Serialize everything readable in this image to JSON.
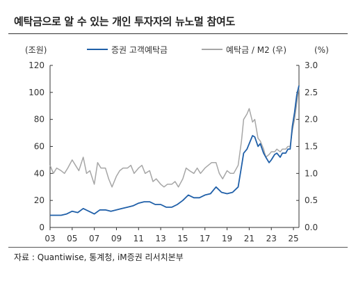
{
  "header": {
    "title": "예탁금으로 알 수 있는 개인 투자자의 뉴노멀 참여도"
  },
  "footer": {
    "source": "자료 : Quantiwise, 통계청, iM증권 리서치본부"
  },
  "colors": {
    "deposits": "#1f5fa8",
    "ratio": "#a6a6a6",
    "axis": "#333333",
    "text": "#333333"
  },
  "chart_data": {
    "type": "line",
    "left_axis": {
      "unit": "(조원)",
      "range": [
        0,
        120
      ],
      "ticks": [
        "0",
        "20",
        "40",
        "60",
        "80",
        "100",
        "120"
      ]
    },
    "right_axis": {
      "unit": "(%)",
      "range": [
        0,
        3
      ],
      "ticks": [
        "0.0",
        "0.5",
        "1.0",
        "1.5",
        "2.0",
        "2.5",
        "3.0"
      ]
    },
    "x_axis": {
      "range": [
        2003,
        2025.5
      ],
      "ticks": [
        "03",
        "05",
        "07",
        "09",
        "11",
        "13",
        "15",
        "17",
        "19",
        "21",
        "23",
        "25"
      ]
    },
    "grid": false,
    "legend": "top",
    "series": [
      {
        "name": "증권 고객예탁금",
        "axis": "left",
        "x": [
          2003.0,
          2003.5,
          2004.0,
          2004.5,
          2005.0,
          2005.5,
          2006.0,
          2006.5,
          2007.0,
          2007.5,
          2008.0,
          2008.5,
          2009.0,
          2009.5,
          2010.0,
          2010.5,
          2011.0,
          2011.5,
          2012.0,
          2012.5,
          2013.0,
          2013.5,
          2014.0,
          2014.5,
          2015.0,
          2015.5,
          2016.0,
          2016.5,
          2017.0,
          2017.5,
          2018.0,
          2018.5,
          2019.0,
          2019.5,
          2020.0,
          2020.3,
          2020.5,
          2020.8,
          2021.0,
          2021.3,
          2021.5,
          2021.8,
          2022.0,
          2022.3,
          2022.5,
          2022.8,
          2023.0,
          2023.3,
          2023.5,
          2023.8,
          2024.0,
          2024.3,
          2024.5,
          2024.7,
          2024.9,
          2025.1,
          2025.3,
          2025.5
        ],
        "values": [
          9,
          9,
          9,
          10,
          12,
          11,
          14,
          12,
          10,
          13,
          13,
          12,
          13,
          14,
          15,
          16,
          18,
          19,
          19,
          17,
          17,
          15,
          15,
          17,
          20,
          24,
          22,
          22,
          24,
          25,
          30,
          26,
          25,
          26,
          30,
          45,
          55,
          58,
          62,
          68,
          67,
          60,
          62,
          55,
          52,
          48,
          50,
          54,
          55,
          52,
          55,
          55,
          58,
          58,
          75,
          85,
          98,
          105
        ]
      },
      {
        "name": "예탁금 / M2 (우)",
        "axis": "right",
        "x": [
          2003.0,
          2003.3,
          2003.6,
          2004.0,
          2004.3,
          2004.6,
          2005.0,
          2005.3,
          2005.6,
          2006.0,
          2006.3,
          2006.6,
          2007.0,
          2007.3,
          2007.6,
          2008.0,
          2008.3,
          2008.6,
          2009.0,
          2009.3,
          2009.6,
          2010.0,
          2010.3,
          2010.6,
          2011.0,
          2011.3,
          2011.6,
          2012.0,
          2012.3,
          2012.6,
          2013.0,
          2013.3,
          2013.6,
          2014.0,
          2014.3,
          2014.6,
          2015.0,
          2015.3,
          2015.6,
          2016.0,
          2016.3,
          2016.6,
          2017.0,
          2017.3,
          2017.6,
          2018.0,
          2018.3,
          2018.6,
          2019.0,
          2019.3,
          2019.6,
          2020.0,
          2020.3,
          2020.5,
          2020.8,
          2021.0,
          2021.3,
          2021.5,
          2021.8,
          2022.0,
          2022.3,
          2022.5,
          2022.8,
          2023.0,
          2023.3,
          2023.5,
          2023.8,
          2024.0,
          2024.3,
          2024.5,
          2024.7,
          2024.9,
          2025.1,
          2025.3,
          2025.5
        ],
        "values": [
          1.15,
          1.0,
          1.1,
          1.05,
          1.0,
          1.1,
          1.25,
          1.15,
          1.05,
          1.3,
          1.0,
          1.05,
          0.8,
          1.2,
          1.1,
          1.1,
          0.9,
          0.75,
          0.95,
          1.05,
          1.1,
          1.1,
          1.15,
          1.0,
          1.1,
          1.15,
          1.0,
          1.05,
          0.85,
          0.9,
          0.8,
          0.75,
          0.8,
          0.8,
          0.85,
          0.75,
          0.9,
          1.1,
          1.05,
          1.0,
          1.1,
          1.0,
          1.1,
          1.15,
          1.2,
          1.2,
          1.0,
          0.9,
          1.05,
          1.0,
          1.0,
          1.15,
          1.6,
          2.0,
          2.1,
          2.2,
          1.95,
          2.0,
          1.65,
          1.6,
          1.45,
          1.3,
          1.35,
          1.4,
          1.4,
          1.45,
          1.4,
          1.45,
          1.45,
          1.5,
          1.5,
          1.8,
          2.0,
          2.3,
          2.6
        ]
      }
    ]
  }
}
